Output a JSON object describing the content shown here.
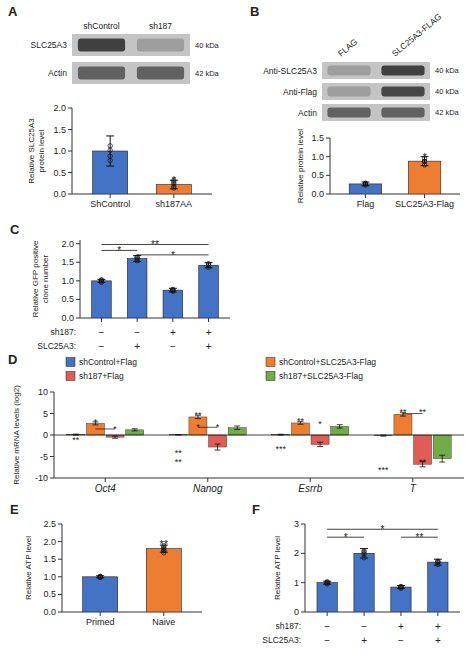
{
  "chart_data": [
    {
      "type": "blot",
      "title": "A",
      "lanes": [
        "shControl",
        "sh187"
      ],
      "rows": [
        {
          "label": "SLC25A3",
          "size": "40 kDa",
          "colors": [
            "#404040",
            "#9e9e9e"
          ]
        },
        {
          "label": "Actin",
          "size": "42 kDa",
          "colors": [
            "#616161",
            "#616161"
          ]
        }
      ]
    },
    {
      "type": "bar",
      "categories": [
        "ShControl",
        "sh187AA"
      ],
      "values": [
        1.0,
        0.22
      ],
      "errors": [
        0.35,
        0.1
      ],
      "points": [
        [
          0.78,
          0.88,
          1.02,
          1.12
        ],
        [
          0.14,
          0.18,
          0.24,
          0.28,
          0.32
        ]
      ],
      "colors": [
        "#4472C4",
        "#ED7D31"
      ],
      "ylabel": "Relative SLC25A3\nprotein level",
      "ylim": [
        0,
        2.0
      ],
      "yticks": [
        {
          "value": 0,
          "label": "0.0"
        },
        0.5,
        {
          "value": 1,
          "label": "1.0"
        },
        1.5,
        {
          "value": 2,
          "label": "2.0"
        }
      ],
      "annotations": [
        {
          "text": "*",
          "category": 1,
          "y": 0.35
        }
      ]
    },
    {
      "type": "blot",
      "title": "B",
      "lanes": [
        "FLAG",
        "SLC25A3-FLAG"
      ],
      "rows": [
        {
          "label": "Anti-SLC25A3",
          "size": "40 kDa",
          "colors": [
            "#9e9e9e",
            "#404040"
          ]
        },
        {
          "label": "Anti-Flag",
          "size": "40 kDa",
          "colors": [
            "#9e9e9e",
            "#474747"
          ]
        },
        {
          "label": "Actin",
          "size": "42 kDa",
          "colors": [
            "#616161",
            "#616161"
          ]
        }
      ]
    },
    {
      "type": "bar",
      "categories": [
        "Flag",
        "SLC25A3-Flag"
      ],
      "values": [
        0.27,
        0.88
      ],
      "errors": [
        0.05,
        0.12
      ],
      "points": [
        [
          0.24,
          0.27,
          0.29,
          0.28
        ],
        [
          0.78,
          0.88,
          0.95,
          0.87
        ]
      ],
      "colors": [
        "#4472C4",
        "#ED7D31"
      ],
      "ylabel": "Relative protein level",
      "ylim": [
        0,
        1.5
      ],
      "yticks": [
        {
          "value": 0,
          "label": "0.0"
        },
        0.5,
        {
          "value": 1,
          "label": "1.0"
        },
        1.5
      ],
      "annotations": [
        {
          "text": "*",
          "category": 1,
          "y": 1.02
        }
      ]
    },
    {
      "type": "bar",
      "title": "C",
      "categories": [
        null,
        null,
        null,
        null
      ],
      "values": [
        1.0,
        1.6,
        0.75,
        1.42
      ],
      "errors": [
        0.04,
        0.08,
        0.05,
        0.07
      ],
      "points": [
        [
          0.96,
          0.99,
          1.01,
          1.03
        ],
        [
          1.54,
          1.58,
          1.62,
          1.64
        ],
        [
          0.72,
          0.74,
          0.77,
          0.76
        ],
        [
          1.37,
          1.41,
          1.44,
          1.46
        ]
      ],
      "color": "#4472C4",
      "ylabel": "Relative GFP positive\nclone number",
      "ylim": [
        0,
        2.1
      ],
      "yticks": [
        {
          "value": 0,
          "label": "0.0"
        },
        0.5,
        {
          "value": 1,
          "label": "1.0"
        },
        1.5,
        {
          "value": 2,
          "label": "2.0"
        }
      ],
      "x_rows": [
        {
          "label": "sh187:",
          "labels": [
            "−",
            "−",
            "+",
            "+"
          ]
        },
        {
          "label": "SLC25A3:",
          "labels": [
            "−",
            "+",
            "−",
            "+"
          ]
        }
      ],
      "brackets": [
        {
          "text": "*",
          "from": 0,
          "to": 1,
          "y": 1.82
        },
        {
          "text": "**",
          "from": 0,
          "to": 3,
          "y": 1.98
        },
        {
          "text": "*",
          "from": 1,
          "to": 3,
          "y": 1.7
        }
      ]
    },
    {
      "type": "bar",
      "title": "D",
      "categories": [
        "Oct4",
        "Nanog",
        "Esrrb",
        "T"
      ],
      "series": [
        {
          "name": "shControl+Flag",
          "color": "#4472C4",
          "values": [
            0.1,
            0.05,
            0.08,
            -0.15
          ],
          "errors": [
            0.12,
            0.04,
            0.1,
            0.12
          ]
        },
        {
          "name": "shControl+SLC25A3-Flag",
          "color": "#ED7D31",
          "values": [
            2.7,
            4.2,
            2.8,
            4.8
          ],
          "errors": [
            0.35,
            0.4,
            0.3,
            0.4
          ]
        },
        {
          "name": "sh187+Flag",
          "color": "#E05C54",
          "values": [
            -0.5,
            -2.8,
            -2.2,
            -6.8
          ],
          "errors": [
            0.25,
            0.7,
            0.5,
            0.6
          ]
        },
        {
          "name": "sh187+SLC25A3-Flag",
          "color": "#70AD47",
          "values": [
            1.2,
            1.7,
            2.0,
            -5.5
          ],
          "errors": [
            0.25,
            0.4,
            0.4,
            0.8
          ]
        }
      ],
      "ylabel": "Relative mRNA levels (log2)",
      "ylim": [
        -10,
        10
      ],
      "yticks": [
        -10,
        -5,
        0,
        5,
        10
      ],
      "legend": "top",
      "annotations": [
        {
          "text": "*",
          "category": 0,
          "series": 1,
          "y": 3.2
        },
        {
          "text": "*",
          "category": 0,
          "series": 2,
          "y": 1.6
        },
        {
          "text": "**",
          "category": 0,
          "series": 0,
          "y": -0.9
        },
        {
          "text": "**",
          "category": 1,
          "series": 1,
          "y": 4.8
        },
        {
          "text": "*",
          "category": 1,
          "series": 1,
          "y": 2.0
        },
        {
          "text": "*",
          "category": 1,
          "series": 2,
          "y": 2.2
        },
        {
          "text": "**",
          "category": 1,
          "series": 0,
          "y": -4.0
        },
        {
          "text": "**",
          "category": 1,
          "series": 0,
          "y": -6.0
        },
        {
          "text": "**",
          "category": 2,
          "series": 1,
          "y": 3.4
        },
        {
          "text": "***",
          "category": 2,
          "series": 0,
          "y": -3.0
        },
        {
          "text": "*",
          "category": 2,
          "series": 2,
          "y": 2.7
        },
        {
          "text": "**",
          "category": 3,
          "series": 1,
          "y": 5.5
        },
        {
          "text": "***",
          "category": 3,
          "series": 0,
          "y": -7.8
        },
        {
          "text": "**",
          "category": 3,
          "series": 2,
          "y": 5.5
        },
        {
          "text": "**",
          "category": 3,
          "series": 2,
          "y": -6.0
        }
      ],
      "brackets": [
        {
          "category": 0,
          "from": 1,
          "to": 2,
          "y": 1.4
        },
        {
          "category": 1,
          "from": 1,
          "to": 2,
          "y": 1.8
        },
        {
          "category": 3,
          "from": 1,
          "to": 2,
          "y": 5.0
        }
      ]
    },
    {
      "type": "bar",
      "title": "E",
      "categories": [
        "Primed",
        "Naive"
      ],
      "values": [
        1.0,
        1.8
      ],
      "errors": [
        0.03,
        0.1
      ],
      "points": [
        [
          0.98,
          1.0,
          1.01,
          0.99,
          1.0,
          1.01
        ],
        [
          1.68,
          1.75,
          1.8,
          1.84,
          1.88,
          1.74
        ]
      ],
      "colors": [
        "#4472C4",
        "#ED7D31"
      ],
      "ylabel": "Relative ATP level",
      "ylim": [
        0,
        2.5
      ],
      "yticks": [
        {
          "value": 0,
          "label": "0.0"
        },
        0.5,
        {
          "value": 1,
          "label": "1.0"
        },
        1.5,
        {
          "value": 2,
          "label": "2.0"
        },
        2.5
      ],
      "annotations": [
        {
          "text": "**",
          "category": 1,
          "y": 1.95
        }
      ]
    },
    {
      "type": "bar",
      "title": "F",
      "categories": [
        null,
        null,
        null,
        null
      ],
      "values": [
        1.0,
        2.0,
        0.85,
        1.7
      ],
      "errors": [
        0.05,
        0.16,
        0.05,
        0.1
      ],
      "points": [
        [
          0.96,
          0.99,
          1.01,
          1.03
        ],
        [
          1.85,
          1.98,
          2.08,
          2.04
        ],
        [
          0.81,
          0.84,
          0.87,
          0.86
        ],
        [
          1.62,
          1.68,
          1.73,
          1.72
        ]
      ],
      "color": "#4472C4",
      "ylabel": "Relative ATP level",
      "ylim": [
        0,
        3
      ],
      "yticks": [
        0,
        1,
        2,
        3
      ],
      "x_rows": [
        {
          "label": "sh187:",
          "labels": [
            "−",
            "−",
            "+",
            "+"
          ]
        },
        {
          "label": "SLC25A3:",
          "labels": [
            "−",
            "+",
            "−",
            "+"
          ]
        }
      ],
      "brackets": [
        {
          "text": "*",
          "from": 0,
          "to": 1,
          "y": 2.55
        },
        {
          "text": "*",
          "from": 0,
          "to": 3,
          "y": 2.82
        },
        {
          "text": "**",
          "from": 2,
          "to": 3,
          "y": 2.55
        }
      ]
    }
  ]
}
